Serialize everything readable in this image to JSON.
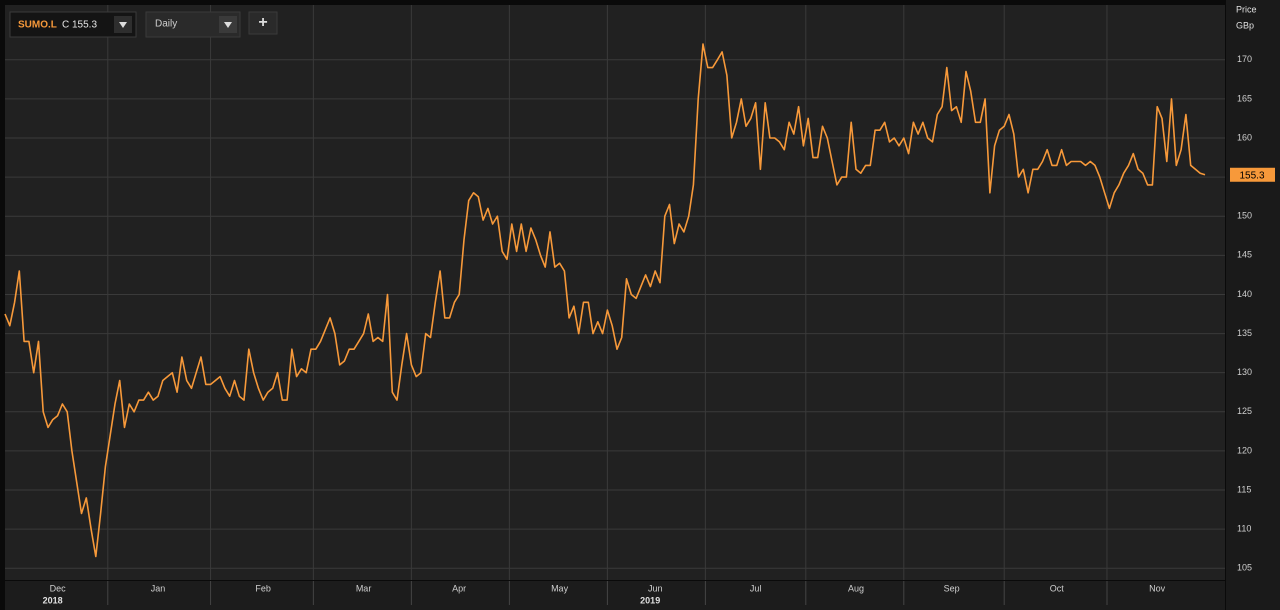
{
  "toolbar": {
    "symbol": "SUMO.L",
    "quote": "C 155.3",
    "interval": "Daily",
    "add": "+"
  },
  "chart_data": {
    "type": "line",
    "ylabel": "Price",
    "yunit": "GBp",
    "color": "#f7993a",
    "grid": true,
    "ylim": [
      103.5,
      177
    ],
    "yticks": [
      105,
      110,
      115,
      120,
      125,
      130,
      135,
      140,
      145,
      150,
      155,
      160,
      165,
      170
    ],
    "categories": [
      null,
      null,
      null,
      null,
      null,
      null,
      null,
      null,
      null,
      null,
      null,
      "Dec",
      null,
      null,
      null,
      null,
      null,
      null,
      null,
      null,
      null,
      null,
      null,
      null,
      null,
      null,
      null,
      null,
      null,
      null,
      null,
      null,
      "Jan",
      null,
      null,
      null,
      null,
      null,
      null,
      null,
      null,
      null,
      null,
      null,
      null,
      null,
      null,
      null,
      null,
      null,
      null,
      null,
      null,
      null,
      "Feb",
      null,
      null,
      null,
      null,
      null,
      null,
      null,
      null,
      null,
      null,
      null,
      null,
      null,
      null,
      null,
      null,
      null,
      null,
      null,
      null,
      "Mar",
      null,
      null,
      null,
      null,
      null,
      null,
      null,
      null,
      null,
      null,
      null,
      null,
      null,
      null,
      null,
      null,
      null,
      null,
      null,
      "Apr",
      null,
      null,
      null,
      null,
      null,
      null,
      null,
      null,
      null,
      null,
      null,
      null,
      null,
      null,
      null,
      null,
      null,
      null,
      null,
      null,
      "May",
      null,
      null,
      null,
      null,
      null,
      null,
      null,
      null,
      null,
      null,
      null,
      null,
      null,
      null,
      null,
      null,
      null,
      null,
      null,
      "Jun",
      null,
      null,
      null,
      null,
      null,
      null,
      null,
      null,
      null,
      null,
      null,
      null,
      null,
      null,
      null,
      null,
      null,
      null,
      null,
      null,
      "Jul",
      null,
      null,
      null,
      null,
      null,
      null,
      null,
      null,
      null,
      null,
      null,
      null,
      null,
      null,
      null,
      null,
      null,
      null,
      null,
      null,
      "Aug",
      null,
      null,
      null,
      null,
      null,
      null,
      null,
      null,
      null,
      null,
      null,
      null,
      null,
      null,
      null,
      null,
      null,
      null,
      null,
      "Sep",
      null,
      null,
      null,
      null,
      null,
      null,
      null,
      null,
      null,
      null,
      null,
      null,
      null,
      null,
      null,
      null,
      null,
      null,
      null,
      null,
      null,
      "Oct",
      null,
      null,
      null,
      null,
      null,
      null,
      null,
      null,
      null,
      null,
      null,
      null,
      null,
      null,
      null,
      null,
      null,
      null,
      null,
      null,
      "Nov",
      null,
      null,
      null,
      null,
      null,
      null,
      null,
      null,
      null,
      null
    ],
    "category_years": [
      null,
      null,
      null,
      null,
      null,
      null,
      null,
      null,
      null,
      null,
      null,
      "2018",
      null,
      null,
      null,
      null,
      null,
      null,
      null,
      null,
      null,
      null,
      null,
      null,
      null,
      null,
      null,
      null,
      null,
      null,
      null,
      null,
      null,
      null,
      null,
      null,
      null,
      null,
      null,
      null,
      null,
      null,
      null,
      null,
      null,
      null,
      null,
      null,
      null,
      null,
      null,
      null,
      null,
      null,
      null,
      null,
      null,
      null,
      null,
      null,
      null,
      null,
      null,
      null,
      null,
      null,
      null,
      null,
      null,
      null,
      null,
      null,
      null,
      null,
      null,
      null,
      null,
      null,
      null,
      null,
      null,
      null,
      null,
      null,
      null,
      null,
      null,
      null,
      null,
      null,
      null,
      null,
      null,
      null,
      null,
      null,
      null,
      null,
      null,
      null,
      null,
      null,
      null,
      null,
      null,
      null,
      null,
      null,
      null,
      null,
      null,
      null,
      null,
      null,
      null,
      null,
      null,
      null,
      null,
      null,
      null,
      null,
      null,
      null,
      null,
      null,
      null,
      null,
      null,
      null,
      null,
      null,
      null,
      null,
      null,
      null,
      "2019",
      null,
      null,
      null,
      null,
      null,
      null,
      null,
      null,
      null,
      null,
      null,
      null,
      null,
      null,
      null,
      null,
      null,
      null,
      null,
      null,
      null,
      null,
      null,
      null,
      null,
      null,
      null,
      null,
      null,
      null,
      null,
      null,
      null,
      null,
      null,
      null,
      null,
      null,
      null,
      null,
      null,
      null,
      null,
      null,
      null,
      null,
      null,
      null,
      null,
      null,
      null,
      null,
      null,
      null,
      null,
      null,
      null,
      null,
      null,
      null,
      null,
      null,
      null,
      null,
      null,
      null,
      null,
      null,
      null,
      null,
      null,
      null,
      null,
      null,
      null,
      null,
      null,
      null,
      null,
      null,
      null,
      null,
      null,
      null,
      null,
      null,
      null,
      null,
      null,
      null,
      null,
      null,
      null,
      null,
      null,
      null,
      null,
      null,
      null,
      null,
      null,
      null,
      null,
      null,
      null,
      null,
      null,
      null,
      null,
      null,
      null,
      null,
      null,
      null,
      null,
      null,
      null,
      null,
      null,
      null
    ],
    "values": [
      137.5,
      136,
      139,
      143,
      134,
      134,
      130,
      134,
      125,
      123,
      124,
      124.5,
      126,
      125,
      120,
      116,
      112,
      114,
      110,
      106.5,
      112,
      118,
      122,
      126,
      129,
      123,
      126,
      125,
      126.5,
      126.5,
      127.5,
      126.5,
      127,
      129,
      129.5,
      130,
      127.5,
      132,
      129,
      128,
      130,
      132,
      128.5,
      128.5,
      129,
      129.5,
      128,
      127,
      129,
      127,
      126.5,
      133,
      130,
      128,
      126.5,
      127.5,
      128,
      130,
      126.5,
      126.5,
      133,
      129.5,
      130.5,
      130,
      133,
      133,
      134,
      135.5,
      137,
      135,
      131,
      131.5,
      133,
      133,
      134,
      135,
      137.5,
      134,
      134.5,
      134,
      140,
      127.5,
      126.5,
      131,
      135,
      131,
      129.5,
      130,
      135,
      134.5,
      139,
      143,
      137,
      137,
      139,
      140,
      147,
      152,
      153,
      152.5,
      149.5,
      151,
      149,
      150,
      145.5,
      144.5,
      149,
      145.5,
      149,
      145.5,
      148.5,
      147,
      145,
      143.5,
      148,
      143.5,
      144,
      143,
      137,
      138.5,
      135,
      139,
      139,
      135,
      136.5,
      135,
      138,
      136,
      133,
      134.5,
      142,
      140,
      139.5,
      141,
      142.5,
      141,
      143,
      141.5,
      150,
      151.5,
      146.5,
      149,
      148,
      150,
      154,
      165,
      172,
      169,
      169,
      170,
      171,
      168,
      160,
      162,
      165,
      161.5,
      162.5,
      164.5,
      156,
      164.5,
      160,
      160,
      159.5,
      158.5,
      162,
      160.5,
      164,
      159,
      162.5,
      157.5,
      157.5,
      161.5,
      160,
      157,
      154,
      155,
      155,
      162,
      156,
      155.5,
      156.5,
      156.5,
      161,
      161,
      162,
      159.5,
      160,
      159,
      160,
      158,
      162,
      160.5,
      162,
      160,
      159.5,
      163,
      164,
      169,
      163.5,
      164,
      162,
      168.5,
      166,
      162,
      162,
      165,
      153,
      159,
      161,
      161.5,
      163,
      160.5,
      155,
      156,
      153,
      156,
      156,
      157,
      158.5,
      156.5,
      156.5,
      158.5,
      156.5,
      157,
      157,
      157,
      156.5,
      157,
      156.5,
      155,
      153,
      151,
      153,
      154,
      155.5,
      156.5,
      158,
      156,
      155.5,
      154,
      154,
      164,
      162.5,
      157,
      165,
      156.5,
      158.5,
      163,
      156.5,
      156,
      155.5,
      155.3
    ]
  }
}
